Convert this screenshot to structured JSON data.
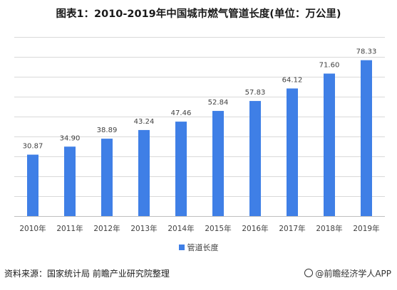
{
  "chart_data": {
    "type": "bar",
    "title": "图表1：2010-2019年中国城市燃气管道长度(单位：万公里)",
    "categories": [
      "2010年",
      "2011年",
      "2012年",
      "2013年",
      "2014年",
      "2015年",
      "2016年",
      "2017年",
      "2018年",
      "2019年"
    ],
    "series": [
      {
        "name": "管道长度",
        "values": [
          30.87,
          34.9,
          38.89,
          43.24,
          47.46,
          52.84,
          57.83,
          64.12,
          71.6,
          78.33
        ],
        "color": "#3f7fe6"
      }
    ],
    "ylim": [
      0,
      90
    ],
    "y_axis_labels_shown": false,
    "grid": true,
    "legend_position": "bottom"
  },
  "footer": {
    "source": "资料来源：国家统计局 前瞻产业研究院整理",
    "brand": "@前瞻经济学人APP"
  }
}
